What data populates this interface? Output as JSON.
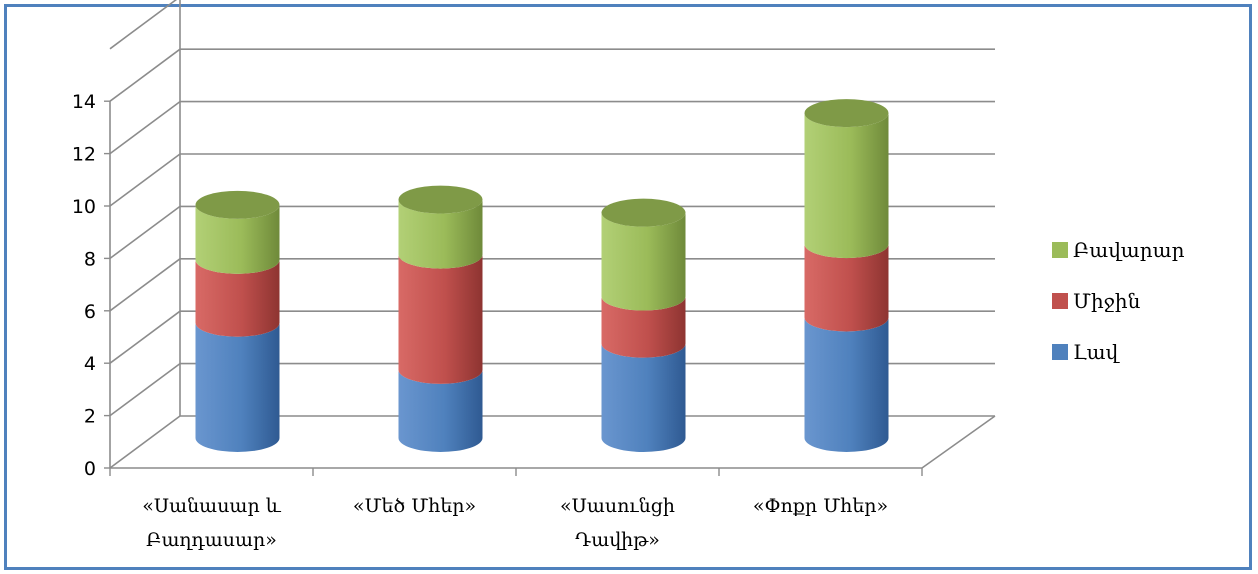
{
  "chart_data": {
    "type": "bar",
    "stacked": true,
    "style": "3d-cylinder",
    "categories": [
      [
        "«Սանասար և",
        "Բաղդասար»"
      ],
      [
        "«Մեծ Մհեր»"
      ],
      [
        "«Սասունցի",
        "Դավիթ»"
      ],
      [
        "«Փոքր Մհեր»"
      ]
    ],
    "series": [
      {
        "name": "Լավ",
        "values": [
          4.4,
          2.6,
          3.6,
          4.6
        ],
        "color": "#4f81bd"
      },
      {
        "name": "Միջին",
        "values": [
          2.4,
          4.4,
          1.8,
          2.8
        ],
        "color": "#c0504d"
      },
      {
        "name": "Բավարար",
        "values": [
          2.1,
          2.1,
          3.2,
          5.0
        ],
        "color": "#9bbb59"
      }
    ],
    "yticks": [
      "0",
      "2",
      "4",
      "6",
      "8",
      "10",
      "12",
      "14"
    ],
    "ylim": [
      0,
      16
    ],
    "grid": true,
    "legend": "right",
    "title": "",
    "xlabel": "",
    "ylabel": ""
  }
}
